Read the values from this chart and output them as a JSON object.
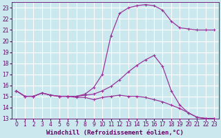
{
  "background_color": "#cbe8ef",
  "grid_color": "#ffffff",
  "line_color": "#993399",
  "xlabel": "Windchill (Refroidissement éolien,°C)",
  "xlim": [
    -0.5,
    23.5
  ],
  "ylim": [
    13,
    23.5
  ],
  "yticks": [
    13,
    14,
    15,
    16,
    17,
    18,
    19,
    20,
    21,
    22,
    23
  ],
  "xticks": [
    0,
    1,
    2,
    3,
    4,
    5,
    6,
    7,
    8,
    9,
    10,
    11,
    12,
    13,
    14,
    15,
    16,
    17,
    18,
    19,
    20,
    21,
    22,
    23
  ],
  "line1_x": [
    0,
    1,
    2,
    3,
    4,
    5,
    6,
    7,
    8,
    9,
    10,
    11,
    12,
    13,
    14,
    15,
    16,
    17,
    18,
    19,
    20,
    21,
    22,
    23
  ],
  "line1_y": [
    15.5,
    15.0,
    15.0,
    15.3,
    15.1,
    15.0,
    15.0,
    14.9,
    14.9,
    14.7,
    14.9,
    15.0,
    15.1,
    15.0,
    15.0,
    14.9,
    14.7,
    14.5,
    14.2,
    13.9,
    13.5,
    13.1,
    13.0,
    13.0
  ],
  "line2_x": [
    0,
    1,
    2,
    3,
    4,
    5,
    6,
    7,
    8,
    9,
    10,
    11,
    12,
    13,
    14,
    15,
    16,
    17,
    18,
    19,
    20,
    21,
    22,
    23
  ],
  "line2_y": [
    15.5,
    15.0,
    15.0,
    15.3,
    15.1,
    15.0,
    15.0,
    15.0,
    15.1,
    15.2,
    15.5,
    15.9,
    16.5,
    17.2,
    17.8,
    18.3,
    18.7,
    17.7,
    15.5,
    14.2,
    13.5,
    13.1,
    13.0,
    13.0
  ],
  "line3_x": [
    0,
    1,
    2,
    3,
    4,
    5,
    6,
    7,
    8,
    9,
    10,
    11,
    12,
    13,
    14,
    15,
    16,
    17,
    18,
    19,
    20,
    21,
    22,
    23
  ],
  "line3_y": [
    15.5,
    15.0,
    15.0,
    15.3,
    15.1,
    15.0,
    15.0,
    15.0,
    15.2,
    15.8,
    17.0,
    20.5,
    22.5,
    23.0,
    23.2,
    23.3,
    23.2,
    22.8,
    21.8,
    21.2,
    21.1,
    21.0,
    21.0,
    21.0
  ],
  "marker": "+",
  "markersize": 3,
  "markeredgewidth": 0.8,
  "linewidth": 0.9,
  "xlabel_fontsize": 6.5,
  "tick_fontsize": 5.5,
  "tick_color": "#660066",
  "spine_color": "#660066",
  "label_color": "#660066"
}
